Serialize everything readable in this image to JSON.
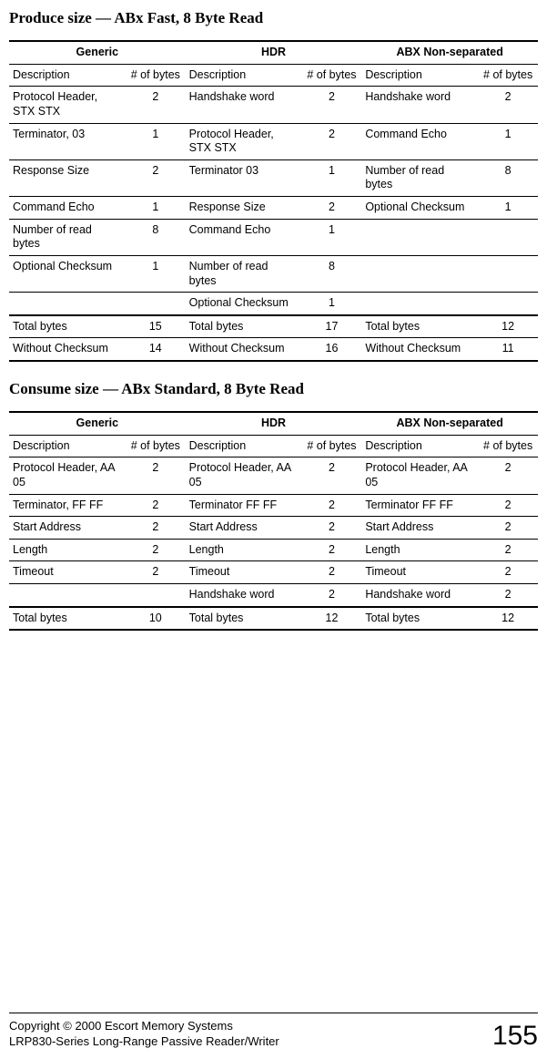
{
  "section1": {
    "title": "Produce size — ABx Fast, 8 Byte Read",
    "group_headers": [
      "Generic",
      "HDR",
      "ABX Non-separated"
    ],
    "sub_headers": [
      "Description",
      "# of bytes",
      "Description",
      "# of bytes",
      "Description",
      "# of bytes"
    ],
    "rows": [
      [
        "Protocol Header, STX STX",
        "2",
        "Handshake word",
        "2",
        "Handshake word",
        "2"
      ],
      [
        "Terminator, 03",
        "1",
        "Protocol Header, STX STX",
        "2",
        "Command Echo",
        "1"
      ],
      [
        "Response Size",
        "2",
        "Terminator 03",
        "1",
        "Number of read bytes",
        "8"
      ],
      [
        "Command Echo",
        "1",
        "Response Size",
        "2",
        "Optional Checksum",
        "1"
      ],
      [
        "Number of read bytes",
        "8",
        "Command Echo",
        "1",
        "",
        ""
      ],
      [
        "Optional Checksum",
        "1",
        "Number of read bytes",
        "8",
        "",
        ""
      ],
      [
        "",
        "",
        "Optional Checksum",
        "1",
        "",
        ""
      ]
    ],
    "total_row": [
      "Total bytes",
      "15",
      "Total bytes",
      "17",
      "Total bytes",
      "12"
    ],
    "without_row": [
      "Without Checksum",
      "14",
      "Without Checksum",
      "16",
      "Without Checksum",
      "11"
    ]
  },
  "section2": {
    "title": "Consume size — ABx Standard, 8 Byte Read",
    "group_headers": [
      "Generic",
      "HDR",
      "ABX Non-separated"
    ],
    "sub_headers": [
      "Description",
      "# of bytes",
      "Description",
      "# of bytes",
      "Description",
      "# of bytes"
    ],
    "rows": [
      [
        "Protocol Header, AA 05",
        "2",
        "Protocol Header, AA 05",
        "2",
        "Protocol Header, AA 05",
        "2"
      ],
      [
        "Terminator, FF FF",
        "2",
        "Terminator FF FF",
        "2",
        "Terminator FF FF",
        "2"
      ],
      [
        "Start Address",
        "2",
        "Start Address",
        "2",
        "Start Address",
        "2"
      ],
      [
        "Length",
        "2",
        "Length",
        "2",
        "Length",
        "2"
      ],
      [
        "Timeout",
        "2",
        "Timeout",
        "2",
        "Timeout",
        "2"
      ],
      [
        "",
        "",
        "Handshake word",
        "2",
        "Handshake word",
        "2"
      ]
    ],
    "total_row": [
      "Total bytes",
      "10",
      "Total bytes",
      "12",
      "Total bytes",
      "12"
    ]
  },
  "footer": {
    "line1": "Copyright © 2000 Escort Memory Systems",
    "line2": "LRP830-Series Long-Range Passive Reader/Writer",
    "page": "155"
  },
  "layout": {
    "col_widths_pct": [
      22,
      11.3,
      22,
      11.3,
      22,
      11.3
    ]
  }
}
